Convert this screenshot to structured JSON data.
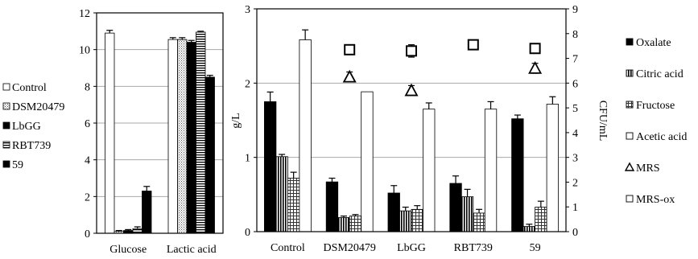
{
  "chart_data": [
    {
      "type": "bar",
      "categories": [
        "Glucose",
        "Lactic acid"
      ],
      "series": [
        {
          "name": "Control",
          "values": [
            10.9,
            10.55
          ]
        },
        {
          "name": "DSM20479",
          "values": [
            0.1,
            10.55
          ]
        },
        {
          "name": "LbGG",
          "values": [
            0.15,
            10.4
          ]
        },
        {
          "name": "RBT739",
          "values": [
            0.25,
            10.95
          ]
        },
        {
          "name": "59",
          "values": [
            2.3,
            8.5
          ]
        }
      ],
      "errors": [
        [
          0.15,
          0.05,
          0.05,
          0.1,
          0.25
        ],
        [
          0.1,
          0.1,
          0.1,
          0.05,
          0.1
        ]
      ],
      "ylim": [
        0,
        12
      ],
      "yticks": [
        "0",
        "2",
        "4",
        "6",
        "8",
        "10",
        "12"
      ],
      "grid": true,
      "legend": "left",
      "title": "",
      "xlabel": "",
      "ylabel": ""
    },
    {
      "type": "bar",
      "categories": [
        "Control",
        "DSM20479",
        "LbGG",
        "RBT739",
        "59"
      ],
      "series": [
        {
          "name": "Oxalate",
          "axis": "left",
          "values": [
            1.75,
            0.67,
            0.52,
            0.65,
            1.52
          ]
        },
        {
          "name": "Citric acid",
          "axis": "left",
          "values": [
            1.01,
            0.19,
            0.28,
            0.47,
            0.07
          ]
        },
        {
          "name": "Fructose",
          "axis": "left",
          "values": [
            0.72,
            0.21,
            0.3,
            0.25,
            0.33
          ]
        },
        {
          "name": "MRS-ox",
          "axis": "right",
          "values": [
            7.75,
            5.65,
            4.95,
            4.95,
            5.15
          ]
        }
      ],
      "errors": [
        [
          0.13,
          0.05,
          0.1,
          0.1,
          0.05
        ],
        [
          0.03,
          0.02,
          0.05,
          0.1,
          0.03
        ],
        [
          0.08,
          0.02,
          0.05,
          0.05,
          0.08
        ],
        [
          0.4,
          0.0,
          0.25,
          0.3,
          0.3
        ]
      ],
      "points": [
        {
          "name": "Acetic acid",
          "axis": "right",
          "marker": "square",
          "values": [
            7.35,
            7.3,
            7.55,
            7.4
          ],
          "at": [
            1,
            2,
            3,
            4
          ],
          "errors": [
            0.2,
            0.25,
            0.15,
            0.2
          ]
        },
        {
          "name": "MRS",
          "axis": "right",
          "marker": "triangle",
          "values": [
            6.25,
            5.7,
            6.6
          ],
          "at": [
            1,
            2,
            4
          ],
          "errors": [
            0.2,
            0.2,
            0.2
          ]
        }
      ],
      "legend_order": [
        "Oxalate",
        "Citric acid",
        "Fructose",
        "Acetic acid",
        "MRS",
        "MRS-ox"
      ],
      "ylim": [
        0,
        3
      ],
      "yticks": [
        "0",
        "1",
        "2",
        "3"
      ],
      "y2lim": [
        0,
        9
      ],
      "y2ticks": [
        "0",
        "1",
        "2",
        "3",
        "4",
        "5",
        "6",
        "7",
        "8",
        "9"
      ],
      "ylabel": "g/L",
      "y2label": "CFU/mL",
      "grid": true,
      "legend": "right",
      "title": "",
      "xlabel": ""
    }
  ]
}
